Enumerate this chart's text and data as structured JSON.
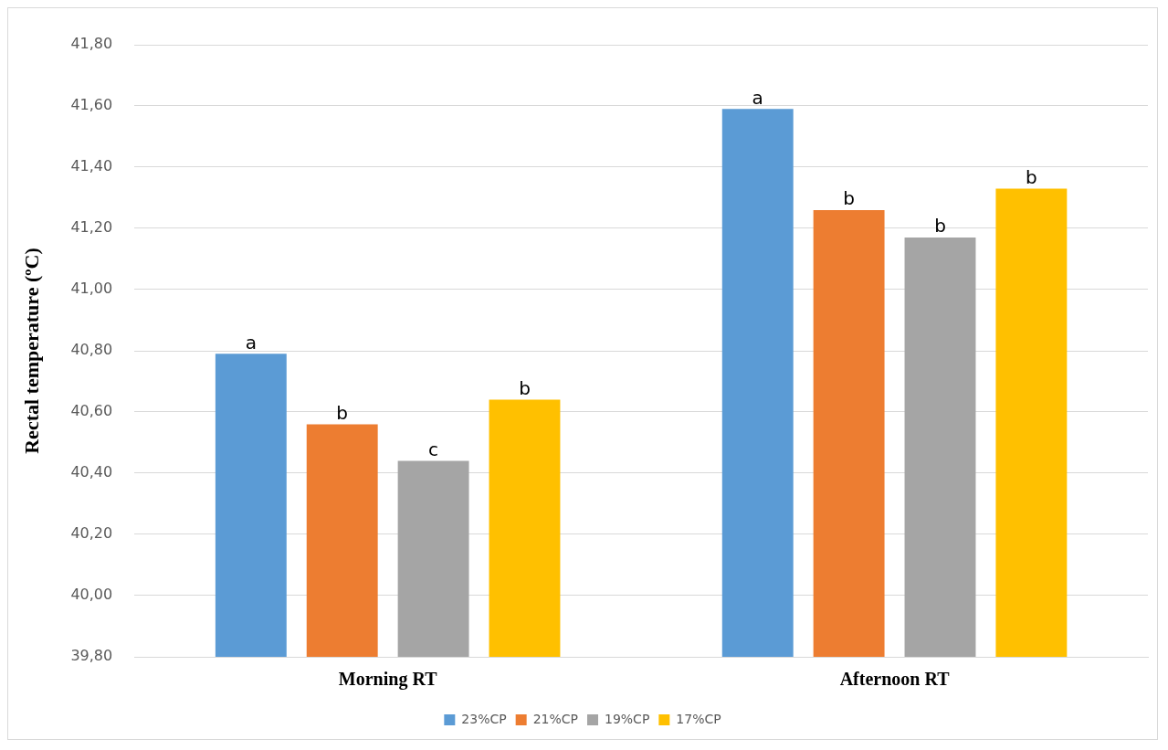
{
  "chart_data": {
    "type": "bar",
    "ylabel": "Rectal temperature (ºC)",
    "categories": [
      "Morning RT",
      "Afternoon RT"
    ],
    "series": [
      {
        "name": "23%CP",
        "color": "#5b9bd5",
        "values": [
          40.79,
          41.59
        ],
        "value_labels": [
          "a",
          "a"
        ]
      },
      {
        "name": "21%CP",
        "color": "#ed7d31",
        "values": [
          40.56,
          41.26
        ],
        "value_labels": [
          "b",
          "b"
        ]
      },
      {
        "name": "19%CP",
        "color": "#a5a5a5",
        "values": [
          40.44,
          41.17
        ],
        "value_labels": [
          "c",
          "b"
        ]
      },
      {
        "name": "17%CP",
        "color": "#ffc000",
        "values": [
          40.64,
          41.33
        ],
        "value_labels": [
          "b",
          "b"
        ]
      }
    ],
    "ylim": [
      39.8,
      41.8
    ],
    "yticks": [
      {
        "value": 39.8,
        "label": "39,80"
      },
      {
        "value": 40.0,
        "label": "40,00"
      },
      {
        "value": 40.2,
        "label": "40,20"
      },
      {
        "value": 40.4,
        "label": "40,40"
      },
      {
        "value": 40.6,
        "label": "40,60"
      },
      {
        "value": 40.8,
        "label": "40,80"
      },
      {
        "value": 41.0,
        "label": "41,00"
      },
      {
        "value": 41.2,
        "label": "41,20"
      },
      {
        "value": 41.4,
        "label": "41,40"
      },
      {
        "value": 41.6,
        "label": "41,60"
      },
      {
        "value": 41.8,
        "label": "41,80"
      }
    ],
    "grid": "y",
    "legend": "bottom"
  }
}
